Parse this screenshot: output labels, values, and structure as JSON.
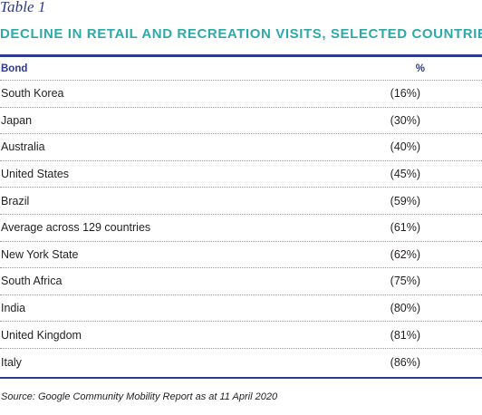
{
  "table": {
    "label": "Table 1",
    "title": "DECLINE IN RETAIL AND RECREATION VISITS, SELECTED COUNTRIES",
    "columns": {
      "name": "Bond",
      "value": "%"
    },
    "rows": [
      {
        "name": "South Korea",
        "value": "(16%)"
      },
      {
        "name": "Japan",
        "value": "(30%)"
      },
      {
        "name": "Australia",
        "value": "(40%)"
      },
      {
        "name": "United States",
        "value": "(45%)"
      },
      {
        "name": "Brazil",
        "value": "(59%)"
      },
      {
        "name": "Average across 129 countries",
        "value": "(61%)"
      },
      {
        "name": "New York State",
        "value": "(62%)"
      },
      {
        "name": "South Africa",
        "value": "(75%)"
      },
      {
        "name": "India",
        "value": "(80%)"
      },
      {
        "name": "United Kingdom",
        "value": "(81%)"
      },
      {
        "name": "Italy",
        "value": "(86%)"
      }
    ],
    "source": "Source: Google Community Mobility Report as at 11 April 2020"
  },
  "colors": {
    "accent_navy": "#2e3a8c",
    "accent_teal": "#2fa8a9",
    "text": "#231f20"
  }
}
